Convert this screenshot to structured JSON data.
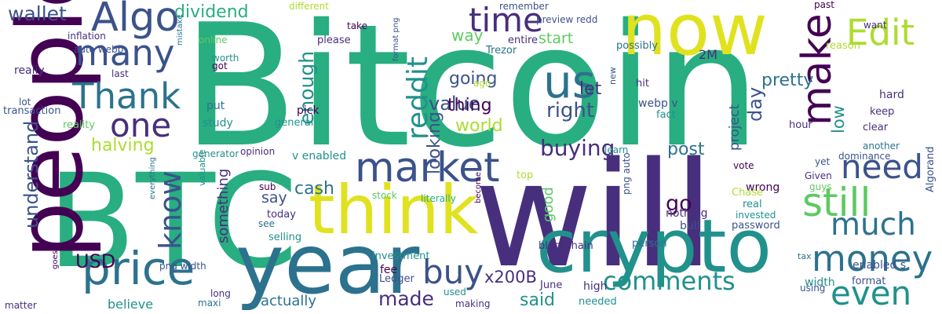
{
  "palette": {
    "purple": "#440154",
    "indigo": "#472f7d",
    "blue": "#3b528b",
    "teal": "#2c728e",
    "cyan": "#21918c",
    "green": "#28ae80",
    "lime": "#5ec962",
    "yellowgreen": "#addc30",
    "yellow": "#e0e21f"
  },
  "words": [
    {
      "text": "Bitcoin",
      "weight": 100,
      "color": "green",
      "vertical": false
    },
    {
      "text": "will",
      "weight": 88,
      "color": "indigo",
      "vertical": false
    },
    {
      "text": "BTC",
      "weight": 85,
      "color": "green",
      "vertical": false
    },
    {
      "text": "people",
      "weight": 72,
      "color": "purple",
      "vertical": true
    },
    {
      "text": "year",
      "weight": 65,
      "color": "teal",
      "vertical": false
    },
    {
      "text": "crypto",
      "weight": 62,
      "color": "cyan",
      "vertical": false
    },
    {
      "text": "now",
      "weight": 58,
      "color": "yellow",
      "vertical": false
    },
    {
      "text": "think",
      "weight": 56,
      "color": "yellow",
      "vertical": false
    },
    {
      "text": "price",
      "weight": 40,
      "color": "teal",
      "vertical": false
    },
    {
      "text": "us",
      "weight": 38,
      "color": "teal",
      "vertical": false
    },
    {
      "text": "market",
      "weight": 36,
      "color": "blue",
      "vertical": false
    },
    {
      "text": "make",
      "weight": 36,
      "color": "purple",
      "vertical": true
    },
    {
      "text": "Algo",
      "weight": 34,
      "color": "blue",
      "vertical": false
    },
    {
      "text": "still",
      "weight": 34,
      "color": "lime",
      "vertical": false
    },
    {
      "text": "many",
      "weight": 30,
      "color": "blue",
      "vertical": false
    },
    {
      "text": "Thank",
      "weight": 30,
      "color": "teal",
      "vertical": false
    },
    {
      "text": "money",
      "weight": 30,
      "color": "teal",
      "vertical": false
    },
    {
      "text": "Edit",
      "weight": 30,
      "color": "yellowgreen",
      "vertical": false
    },
    {
      "text": "time",
      "weight": 28,
      "color": "indigo",
      "vertical": false
    },
    {
      "text": "buy",
      "weight": 28,
      "color": "blue",
      "vertical": false
    },
    {
      "text": "one",
      "weight": 28,
      "color": "indigo",
      "vertical": false
    },
    {
      "text": "need",
      "weight": 28,
      "color": "blue",
      "vertical": false
    },
    {
      "text": "even",
      "weight": 28,
      "color": "cyan",
      "vertical": false
    },
    {
      "text": "much",
      "weight": 26,
      "color": "teal",
      "vertical": false
    },
    {
      "text": "know",
      "weight": 26,
      "color": "blue",
      "vertical": true
    },
    {
      "text": "reddit",
      "weight": 24,
      "color": "cyan",
      "vertical": true
    },
    {
      "text": "comments",
      "weight": 22,
      "color": "cyan",
      "vertical": false
    },
    {
      "text": "made",
      "weight": 20,
      "color": "indigo",
      "vertical": false
    },
    {
      "text": "buying",
      "weight": 20,
      "color": "indigo",
      "vertical": false
    },
    {
      "text": "wallet",
      "weight": 18,
      "color": "blue",
      "vertical": false
    },
    {
      "text": "dividend",
      "weight": 18,
      "color": "green",
      "vertical": false
    },
    {
      "text": "value",
      "weight": 18,
      "color": "blue",
      "vertical": false
    },
    {
      "text": "right",
      "weight": 18,
      "color": "blue",
      "vertical": false
    },
    {
      "text": "go",
      "weight": 18,
      "color": "purple",
      "vertical": false
    },
    {
      "text": "said",
      "weight": 18,
      "color": "cyan",
      "vertical": false
    },
    {
      "text": "USD",
      "weight": 18,
      "color": "purple",
      "vertical": false
    },
    {
      "text": "enough",
      "weight": 18,
      "color": "cyan",
      "vertical": true
    },
    {
      "text": "cash",
      "weight": 18,
      "color": "teal",
      "vertical": false
    },
    {
      "text": "understand",
      "weight": 18,
      "color": "blue",
      "vertical": true
    },
    {
      "text": "halving",
      "weight": 16,
      "color": "yellowgreen",
      "vertical": false
    },
    {
      "text": "looking",
      "weight": 16,
      "color": "blue",
      "vertical": true
    },
    {
      "text": "going",
      "weight": 16,
      "color": "blue",
      "vertical": false
    },
    {
      "text": "thing",
      "weight": 16,
      "color": "purple",
      "vertical": false
    },
    {
      "text": "world",
      "weight": 16,
      "color": "yellowgreen",
      "vertical": false
    },
    {
      "text": "day",
      "weight": 16,
      "color": "blue",
      "vertical": true
    },
    {
      "text": "let",
      "weight": 16,
      "color": "indigo",
      "vertical": false
    },
    {
      "text": "pretty",
      "weight": 16,
      "color": "teal",
      "vertical": false
    },
    {
      "text": "post",
      "weight": 16,
      "color": "teal",
      "vertical": false
    },
    {
      "text": "x200B",
      "weight": 16,
      "color": "indigo",
      "vertical": false
    },
    {
      "text": "say",
      "weight": 16,
      "color": "blue",
      "vertical": false
    },
    {
      "text": "something",
      "weight": 14,
      "color": "indigo",
      "vertical": true
    },
    {
      "text": "actually",
      "weight": 14,
      "color": "teal",
      "vertical": false
    },
    {
      "text": "believe",
      "weight": 14,
      "color": "cyan",
      "vertical": false
    },
    {
      "text": "way",
      "weight": 14,
      "color": "lime",
      "vertical": false
    },
    {
      "text": "start",
      "weight": 14,
      "color": "lime",
      "vertical": false
    },
    {
      "text": "project",
      "weight": 14,
      "color": "blue",
      "vertical": true
    },
    {
      "text": "low",
      "weight": 14,
      "color": "cyan",
      "vertical": true
    },
    {
      "text": "good",
      "weight": 12,
      "color": "lime",
      "vertical": true
    },
    {
      "text": "2M",
      "weight": 12,
      "color": "indigo",
      "vertical": false
    },
    {
      "text": "webp v",
      "weight": 12,
      "color": "blue",
      "vertical": false
    },
    {
      "text": "Ledger",
      "weight": 12,
      "color": "blue",
      "vertical": false
    },
    {
      "text": "June",
      "weight": 12,
      "color": "indigo",
      "vertical": false
    },
    {
      "text": "fee",
      "weight": 12,
      "color": "purple",
      "vertical": false
    },
    {
      "text": "high",
      "weight": 12,
      "color": "indigo",
      "vertical": false
    },
    {
      "text": "blockchain",
      "weight": 12,
      "color": "indigo",
      "vertical": false
    },
    {
      "text": "person",
      "weight": 12,
      "color": "teal",
      "vertical": false
    },
    {
      "text": "format",
      "weight": 12,
      "color": "blue",
      "vertical": false
    },
    {
      "text": "width",
      "weight": 12,
      "color": "cyan",
      "vertical": false
    },
    {
      "text": "enabled s",
      "weight": 12,
      "color": "blue",
      "vertical": false
    },
    {
      "text": "real",
      "weight": 12,
      "color": "cyan",
      "vertical": false
    },
    {
      "text": "password",
      "weight": 12,
      "color": "blue",
      "vertical": false
    },
    {
      "text": "nothing",
      "weight": 12,
      "color": "indigo",
      "vertical": false
    },
    {
      "text": "bull",
      "weight": 12,
      "color": "blue",
      "vertical": false
    },
    {
      "text": "wrong",
      "weight": 12,
      "color": "purple",
      "vertical": false
    },
    {
      "text": "vote",
      "weight": 11,
      "color": "purple",
      "vertical": false
    },
    {
      "text": "Given",
      "weight": 11,
      "color": "indigo",
      "vertical": false
    },
    {
      "text": "yet",
      "weight": 11,
      "color": "blue",
      "vertical": false
    },
    {
      "text": "guys",
      "weight": 11,
      "color": "lime",
      "vertical": false
    },
    {
      "text": "Chase",
      "weight": 11,
      "color": "yellowgreen",
      "vertical": false
    },
    {
      "text": "invested",
      "weight": 11,
      "color": "cyan",
      "vertical": false
    },
    {
      "text": "dominance",
      "weight": 11,
      "color": "blue",
      "vertical": false
    },
    {
      "text": "another",
      "weight": 11,
      "color": "teal",
      "vertical": false
    },
    {
      "text": "clear",
      "weight": 11,
      "color": "indigo",
      "vertical": false
    },
    {
      "text": "keep",
      "weight": 11,
      "color": "indigo",
      "vertical": false
    },
    {
      "text": "hard",
      "weight": 11,
      "color": "indigo",
      "vertical": false
    },
    {
      "text": "hour",
      "weight": 11,
      "color": "indigo",
      "vertical": false
    },
    {
      "text": "reason",
      "weight": 11,
      "color": "yellowgreen",
      "vertical": false
    },
    {
      "text": "past",
      "weight": 11,
      "color": "purple",
      "vertical": false
    },
    {
      "text": "want",
      "weight": 11,
      "color": "indigo",
      "vertical": false
    },
    {
      "text": "Algorand",
      "weight": 11,
      "color": "blue",
      "vertical": true
    },
    {
      "text": "tax",
      "weight": 11,
      "color": "teal",
      "vertical": false
    },
    {
      "text": "using",
      "weight": 11,
      "color": "blue",
      "vertical": false
    },
    {
      "text": "v enabled",
      "weight": 12,
      "color": "cyan",
      "vertical": false
    },
    {
      "text": "opinion",
      "weight": 11,
      "color": "indigo",
      "vertical": false
    },
    {
      "text": "generator",
      "weight": 11,
      "color": "cyan",
      "vertical": false
    },
    {
      "text": "study",
      "weight": 11,
      "color": "cyan",
      "vertical": false
    },
    {
      "text": "put",
      "weight": 11,
      "color": "teal",
      "vertical": false
    },
    {
      "text": "pick",
      "weight": 11,
      "color": "purple",
      "vertical": false
    },
    {
      "text": "general",
      "weight": 11,
      "color": "cyan",
      "vertical": false
    },
    {
      "text": "sub",
      "weight": 11,
      "color": "purple",
      "vertical": false
    },
    {
      "text": "today",
      "weight": 11,
      "color": "indigo",
      "vertical": false
    },
    {
      "text": "see",
      "weight": 11,
      "color": "teal",
      "vertical": false
    },
    {
      "text": "selling",
      "weight": 11,
      "color": "cyan",
      "vertical": false
    },
    {
      "text": "literally",
      "weight": 11,
      "color": "green",
      "vertical": false
    },
    {
      "text": "stock",
      "weight": 11,
      "color": "lime",
      "vertical": false
    },
    {
      "text": "investment",
      "weight": 11,
      "color": "cyan",
      "vertical": false
    },
    {
      "text": "become",
      "weight": 10,
      "color": "purple",
      "vertical": true
    },
    {
      "text": "used",
      "weight": 10,
      "color": "cyan",
      "vertical": false
    },
    {
      "text": "making",
      "weight": 10,
      "color": "indigo",
      "vertical": false
    },
    {
      "text": "needed",
      "weight": 11,
      "color": "cyan",
      "vertical": false
    },
    {
      "text": "top",
      "weight": 11,
      "color": "yellowgreen",
      "vertical": false
    },
    {
      "text": "png auto",
      "weight": 11,
      "color": "blue",
      "vertical": true
    },
    {
      "text": "learn",
      "weight": 11,
      "color": "cyan",
      "vertical": false
    },
    {
      "text": "new",
      "weight": 10,
      "color": "blue",
      "vertical": true
    },
    {
      "text": "hit",
      "weight": 11,
      "color": "indigo",
      "vertical": false
    },
    {
      "text": "fact",
      "weight": 11,
      "color": "cyan",
      "vertical": false
    },
    {
      "text": "possibly",
      "weight": 11,
      "color": "teal",
      "vertical": false
    },
    {
      "text": "entire",
      "weight": 11,
      "color": "indigo",
      "vertical": false
    },
    {
      "text": "Trezor",
      "weight": 11,
      "color": "teal",
      "vertical": false
    },
    {
      "text": "preview redd",
      "weight": 11,
      "color": "blue",
      "vertical": false
    },
    {
      "text": "remember",
      "weight": 10,
      "color": "blue",
      "vertical": false
    },
    {
      "text": "ago",
      "weight": 11,
      "color": "yellowgreen",
      "vertical": false
    },
    {
      "text": "format png",
      "weight": 10,
      "color": "blue",
      "vertical": true
    },
    {
      "text": "different",
      "weight": 11,
      "color": "yellowgreen",
      "vertical": false
    },
    {
      "text": "take",
      "weight": 11,
      "color": "purple",
      "vertical": false
    },
    {
      "text": "please",
      "weight": 11,
      "color": "indigo",
      "vertical": false
    },
    {
      "text": "inflation",
      "weight": 11,
      "color": "indigo",
      "vertical": false
    },
    {
      "text": "auto webp",
      "weight": 12,
      "color": "blue",
      "vertical": false
    },
    {
      "text": "online",
      "weight": 11,
      "color": "lime",
      "vertical": false
    },
    {
      "text": "worth",
      "weight": 11,
      "color": "cyan",
      "vertical": false
    },
    {
      "text": "got",
      "weight": 11,
      "color": "purple",
      "vertical": false
    },
    {
      "text": "really",
      "weight": 11,
      "color": "indigo",
      "vertical": false
    },
    {
      "text": "last",
      "weight": 11,
      "color": "indigo",
      "vertical": false
    },
    {
      "text": "mistake",
      "weight": 10,
      "color": "teal",
      "vertical": true
    },
    {
      "text": "lot",
      "weight": 11,
      "color": "blue",
      "vertical": false
    },
    {
      "text": "transaction",
      "weight": 11,
      "color": "blue",
      "vertical": false
    },
    {
      "text": "reality",
      "weight": 11,
      "color": "lime",
      "vertical": false
    },
    {
      "text": "png width",
      "weight": 11,
      "color": "blue",
      "vertical": false
    },
    {
      "text": "valuable",
      "weight": 11,
      "color": "cyan",
      "vertical": true
    },
    {
      "text": "everything",
      "weight": 10,
      "color": "teal",
      "vertical": true
    },
    {
      "text": "long",
      "weight": 11,
      "color": "indigo",
      "vertical": false
    },
    {
      "text": "maxi",
      "weight": 11,
      "color": "teal",
      "vertical": false
    },
    {
      "text": "goes",
      "weight": 10,
      "color": "purple",
      "vertical": true
    },
    {
      "text": "matter",
      "weight": 11,
      "color": "indigo",
      "vertical": false
    },
    {
      "text": "t",
      "weight": 12,
      "color": "green",
      "vertical": false
    },
    {
      "text": "s",
      "weight": 16,
      "color": "purple",
      "vertical": false
    }
  ]
}
